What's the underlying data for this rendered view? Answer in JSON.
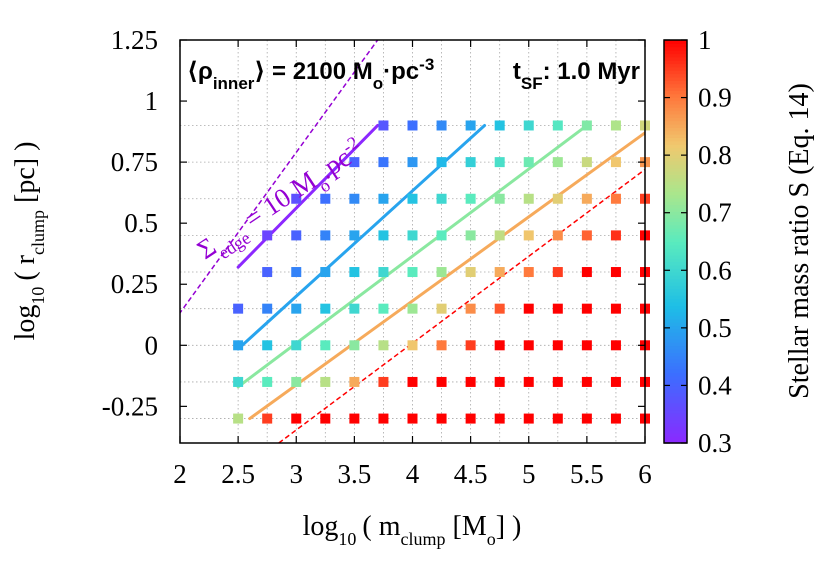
{
  "chart_data": {
    "type": "scatter",
    "annotations": {
      "density": {
        "open": "⟨ρ",
        "sub": "inner",
        "close": "⟩ = 2100 M",
        "unit_sub": "o",
        "unit": "·pc",
        "unit_sup": "-3"
      },
      "time": {
        "main": "t",
        "sub": "SF",
        "rest": ": 1.0 Myr"
      },
      "edge": {
        "sigma": "Σ",
        "sub": "edge",
        "rest": " = 10 M",
        "unit_sub": "o",
        "unit": ".pc",
        "unit_sup": "-2"
      }
    },
    "xlabel": {
      "pre": "log",
      "pre_sub": "10",
      "mid": "( m",
      "mid_sub": "clump",
      "post": " [M",
      "post_sub": "o",
      "end": "] )"
    },
    "ylabel": {
      "pre": "log",
      "pre_sub": "10",
      "mid": "( r",
      "mid_sub": "clump",
      "post": " [pc] )"
    },
    "colorbar_label": "Stellar mass ratio S (Eq. 14)",
    "xlim": [
      2,
      6
    ],
    "ylim": [
      -0.4,
      1.25
    ],
    "clim": [
      0.3,
      1
    ],
    "x_ticks": [
      "2",
      "2.5",
      "3",
      "3.5",
      "4",
      "4.5",
      "5",
      "5.5",
      "6"
    ],
    "y_ticks": [
      "-0.25",
      "0",
      "0.25",
      "0.5",
      "0.75",
      "1",
      "1.25"
    ],
    "c_ticks": [
      "0.3",
      "0.4",
      "0.5",
      "0.6",
      "0.7",
      "0.8",
      "0.9",
      "1"
    ],
    "grid": true,
    "x_grid": [
      2.5,
      2.75,
      3,
      3.25,
      3.5,
      3.75,
      4,
      4.25,
      4.5,
      4.75,
      5,
      5.25,
      5.5,
      5.75,
      6
    ],
    "y_grid": [
      -0.3,
      -0.15,
      0,
      0.15,
      0.3,
      0.45,
      0.6,
      0.75,
      0.9
    ],
    "points_S": [
      [
        0.75,
        0.95,
        1,
        1,
        1,
        1,
        1,
        1,
        1,
        1,
        1,
        1,
        1,
        1,
        1
      ],
      [
        0.6,
        0.65,
        0.7,
        0.75,
        0.85,
        0.95,
        1,
        1,
        1,
        1,
        1,
        1,
        1,
        1,
        1
      ],
      [
        0.5,
        0.55,
        0.6,
        0.65,
        0.7,
        0.75,
        0.82,
        0.9,
        0.95,
        1,
        1,
        1,
        1,
        1,
        1
      ],
      [
        0.4,
        0.45,
        0.5,
        0.55,
        0.6,
        0.65,
        0.72,
        0.8,
        0.88,
        0.93,
        1,
        1,
        1,
        1,
        1
      ],
      [
        null,
        0.4,
        0.45,
        0.5,
        0.55,
        0.6,
        0.65,
        0.72,
        0.8,
        0.85,
        0.9,
        0.95,
        1,
        1,
        1
      ],
      [
        null,
        0.35,
        0.4,
        0.45,
        0.5,
        0.55,
        0.6,
        0.65,
        0.7,
        0.76,
        0.82,
        0.88,
        0.92,
        0.96,
        1
      ],
      [
        null,
        null,
        0.37,
        0.42,
        0.46,
        0.5,
        0.55,
        0.6,
        0.65,
        0.7,
        0.75,
        0.8,
        0.85,
        0.9,
        0.95
      ],
      [
        null,
        null,
        null,
        null,
        0.4,
        0.43,
        0.48,
        0.53,
        0.58,
        0.62,
        0.67,
        0.72,
        0.77,
        0.82,
        0.87
      ],
      [
        null,
        null,
        null,
        null,
        null,
        0.38,
        0.42,
        0.46,
        0.5,
        0.55,
        0.6,
        0.64,
        0.69,
        0.74,
        0.78
      ]
    ],
    "contours": [
      {
        "S": 0.3,
        "x": [
          2.5,
          3.7
        ],
        "y": [
          0.32,
          0.9
        ]
      },
      {
        "S": 0.5,
        "x": [
          2.5,
          4.62
        ],
        "y": [
          -0.015,
          0.9
        ]
      },
      {
        "S": 0.7,
        "x": [
          2.5,
          5.5
        ],
        "y": [
          -0.17,
          0.9
        ]
      },
      {
        "S": 0.85,
        "x": [
          2.6,
          6.0
        ],
        "y": [
          -0.3,
          0.87
        ]
      }
    ],
    "reference_lines": [
      {
        "name": "sigma-edge",
        "color": "#9400d3",
        "x": [
          1.95,
          3.7
        ],
        "y": [
          0.1,
          1.25
        ]
      },
      {
        "name": "S-one",
        "color": "#ff0000",
        "x": [
          2.85,
          6.0
        ],
        "y": [
          -0.4,
          0.72
        ]
      }
    ],
    "colors": {
      "sigma_line": "#9400d3",
      "unity_line": "#ff0000"
    }
  }
}
